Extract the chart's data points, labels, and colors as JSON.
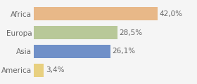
{
  "categories": [
    "America",
    "Asia",
    "Europa",
    "Africa"
  ],
  "values": [
    3.4,
    26.1,
    28.5,
    42.0
  ],
  "labels": [
    "3,4%",
    "26,1%",
    "28,5%",
    "42,0%"
  ],
  "bar_colors": [
    "#e8d080",
    "#7090c8",
    "#b8c898",
    "#e8b888"
  ],
  "background_color": "#f5f5f5",
  "xlim": [
    0,
    55
  ],
  "label_fontsize": 7.5,
  "tick_fontsize": 7.5,
  "label_color": "#666666",
  "tick_color": "#666666",
  "bar_height": 0.72
}
